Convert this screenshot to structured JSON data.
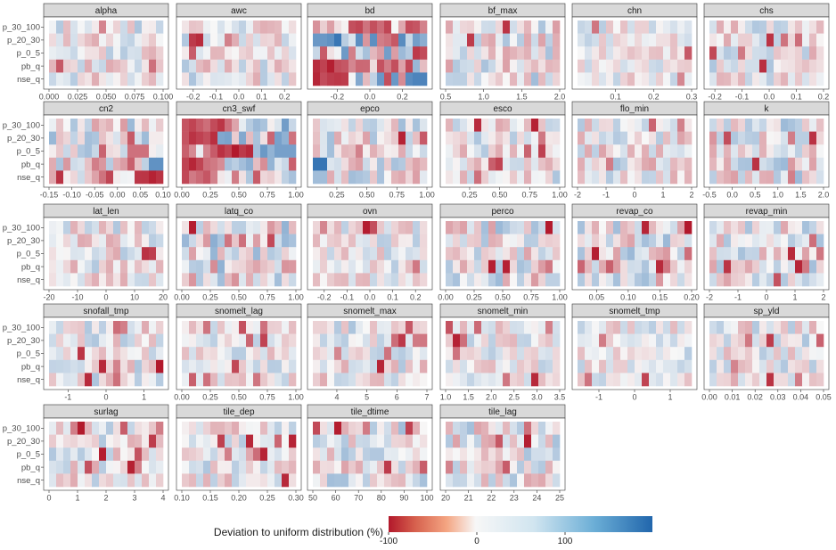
{
  "chart_data": {
    "type": "heatmap",
    "rows": [
      "p_30_100",
      "p_20_30",
      "p_0_5",
      "pb_q",
      "nse_q"
    ],
    "legend": {
      "title": "Deviation to uniform distribution (%)",
      "ticks": [
        "-100",
        "0",
        "100"
      ],
      "range": [
        -100,
        200
      ],
      "colors": [
        "#b2182b",
        "#f7f7f7",
        "#2166ac"
      ]
    },
    "panels": [
      {
        "name": "alpha",
        "xlim": [
          0,
          0.1
        ],
        "ticks": [
          "0.000",
          "0.025",
          "0.050",
          "0.075",
          "0.100"
        ],
        "tick_values": [
          0,
          0.025,
          0.05,
          0.075,
          0.1
        ],
        "intensity": 0.35,
        "seed": 1
      },
      {
        "name": "awc",
        "xlim": [
          -0.25,
          0.25
        ],
        "ticks": [
          "-0.2",
          "-0.1",
          "0.0",
          "0.1",
          "0.2"
        ],
        "tick_values": [
          -0.2,
          -0.1,
          0,
          0.1,
          0.2
        ],
        "intensity": 0.35,
        "seed": 2
      },
      {
        "name": "bd",
        "xlim": [
          -0.35,
          0.35
        ],
        "ticks": [
          "-0.2",
          "0.0",
          "0.2"
        ],
        "tick_values": [
          -0.2,
          0,
          0.2
        ],
        "intensity": 0.8,
        "seed": 3,
        "pattern": "bd"
      },
      {
        "name": "bf_max",
        "xlim": [
          0.5,
          2
        ],
        "ticks": [
          "0.5",
          "1.0",
          "1.5",
          "2.0"
        ],
        "tick_values": [
          0.5,
          1,
          1.5,
          2
        ],
        "intensity": 0.4,
        "seed": 4
      },
      {
        "name": "chn",
        "xlim": [
          0,
          0.3
        ],
        "ticks": [
          "0.1",
          "0.2",
          "0.3"
        ],
        "tick_values": [
          0.1,
          0.2,
          0.3
        ],
        "intensity": 0.3,
        "seed": 5
      },
      {
        "name": "chs",
        "xlim": [
          -0.22,
          0.2
        ],
        "ticks": [
          "-0.2",
          "-0.1",
          "0.0",
          "0.1",
          "0.2"
        ],
        "tick_values": [
          -0.2,
          -0.1,
          0,
          0.1,
          0.2
        ],
        "intensity": 0.35,
        "seed": 6
      },
      {
        "name": "cn2",
        "xlim": [
          -0.15,
          0.1
        ],
        "ticks": [
          "-0.15",
          "-0.10",
          "-0.05",
          "0.00",
          "0.05",
          "0.10"
        ],
        "tick_values": [
          -0.15,
          -0.1,
          -0.05,
          0,
          0.05,
          0.1
        ],
        "intensity": 0.45,
        "seed": 7,
        "pattern": "cn2"
      },
      {
        "name": "cn3_swf",
        "xlim": [
          0,
          1
        ],
        "ticks": [
          "0.00",
          "0.25",
          "0.50",
          "0.75",
          "1.00"
        ],
        "tick_values": [
          0,
          0.25,
          0.5,
          0.75,
          1
        ],
        "intensity": 0.7,
        "seed": 8,
        "pattern": "cn3"
      },
      {
        "name": "epco",
        "xlim": [
          0.05,
          1
        ],
        "ticks": [
          "0.25",
          "0.50",
          "0.75",
          "1.00"
        ],
        "tick_values": [
          0.25,
          0.5,
          0.75,
          1
        ],
        "intensity": 0.4,
        "seed": 9,
        "pattern": "epco"
      },
      {
        "name": "esco",
        "xlim": [
          0.05,
          1
        ],
        "ticks": [
          "0.25",
          "0.50",
          "0.75",
          "1.00"
        ],
        "tick_values": [
          0.25,
          0.5,
          0.75,
          1
        ],
        "intensity": 0.35,
        "seed": 10
      },
      {
        "name": "flo_min",
        "xlim": [
          -2,
          2
        ],
        "ticks": [
          "-2",
          "-1",
          "0",
          "1",
          "2"
        ],
        "tick_values": [
          -2,
          -1,
          0,
          1,
          2
        ],
        "intensity": 0.4,
        "seed": 11
      },
      {
        "name": "k",
        "xlim": [
          -0.5,
          2
        ],
        "ticks": [
          "-0.5",
          "0.0",
          "0.5",
          "1.0",
          "1.5",
          "2.0"
        ],
        "tick_values": [
          -0.5,
          0,
          0.5,
          1,
          1.5,
          2
        ],
        "intensity": 0.45,
        "seed": 12
      },
      {
        "name": "lat_len",
        "xlim": [
          -20,
          20
        ],
        "ticks": [
          "-20",
          "-10",
          "0",
          "10",
          "20"
        ],
        "tick_values": [
          -20,
          -10,
          0,
          10,
          20
        ],
        "intensity": 0.35,
        "seed": 13
      },
      {
        "name": "latq_co",
        "xlim": [
          0,
          1
        ],
        "ticks": [
          "0.00",
          "0.25",
          "0.50",
          "0.75",
          "1.00"
        ],
        "tick_values": [
          0,
          0.25,
          0.5,
          0.75,
          1
        ],
        "intensity": 0.5,
        "seed": 14
      },
      {
        "name": "ovn",
        "xlim": [
          -0.25,
          0.25
        ],
        "ticks": [
          "-0.2",
          "-0.1",
          "0.0",
          "0.1",
          "0.2"
        ],
        "tick_values": [
          -0.2,
          -0.1,
          0,
          0.1,
          0.2
        ],
        "intensity": 0.3,
        "seed": 15
      },
      {
        "name": "perco",
        "xlim": [
          0,
          1
        ],
        "ticks": [
          "0.00",
          "0.25",
          "0.50",
          "0.75",
          "1.00"
        ],
        "tick_values": [
          0,
          0.25,
          0.5,
          0.75,
          1
        ],
        "intensity": 0.45,
        "seed": 16
      },
      {
        "name": "revap_co",
        "xlim": [
          0.02,
          0.2
        ],
        "ticks": [
          "0.05",
          "0.10",
          "0.15",
          "0.20"
        ],
        "tick_values": [
          0.05,
          0.1,
          0.15,
          0.2
        ],
        "intensity": 0.45,
        "seed": 17
      },
      {
        "name": "revap_min",
        "xlim": [
          -2,
          2
        ],
        "ticks": [
          "-2",
          "-1",
          "0",
          "1",
          "2"
        ],
        "tick_values": [
          -2,
          -1,
          0,
          1,
          2
        ],
        "intensity": 0.4,
        "seed": 18
      },
      {
        "name": "snofall_tmp",
        "xlim": [
          -1.5,
          1.5
        ],
        "ticks": [
          "-1",
          "0",
          "1"
        ],
        "tick_values": [
          -1,
          0,
          1
        ],
        "intensity": 0.35,
        "seed": 19
      },
      {
        "name": "snomelt_lag",
        "xlim": [
          0,
          1
        ],
        "ticks": [
          "0.00",
          "0.25",
          "0.50",
          "0.75",
          "1.00"
        ],
        "tick_values": [
          0,
          0.25,
          0.5,
          0.75,
          1
        ],
        "intensity": 0.3,
        "seed": 20
      },
      {
        "name": "snomelt_max",
        "xlim": [
          3.2,
          7
        ],
        "ticks": [
          "4",
          "5",
          "6",
          "7"
        ],
        "tick_values": [
          4,
          5,
          6,
          7
        ],
        "intensity": 0.35,
        "seed": 21
      },
      {
        "name": "snomelt_min",
        "xlim": [
          1,
          3.5
        ],
        "ticks": [
          "1.0",
          "1.5",
          "2.0",
          "2.5",
          "3.0",
          "3.5"
        ],
        "tick_values": [
          1,
          1.5,
          2,
          2.5,
          3,
          3.5
        ],
        "intensity": 0.3,
        "seed": 22
      },
      {
        "name": "snomelt_tmp",
        "xlim": [
          -1.6,
          1.6
        ],
        "ticks": [
          "-1",
          "0",
          "1"
        ],
        "tick_values": [
          -1,
          0,
          1
        ],
        "intensity": 0.3,
        "seed": 23
      },
      {
        "name": "sp_yld",
        "xlim": [
          0,
          0.05
        ],
        "ticks": [
          "0.00",
          "0.01",
          "0.02",
          "0.03",
          "0.04",
          "0.05"
        ],
        "tick_values": [
          0,
          0.01,
          0.02,
          0.03,
          0.04,
          0.05
        ],
        "intensity": 0.35,
        "seed": 24
      },
      {
        "name": "surlag",
        "xlim": [
          0,
          4
        ],
        "ticks": [
          "0",
          "1",
          "2",
          "3",
          "4"
        ],
        "tick_values": [
          0,
          1,
          2,
          3,
          4
        ],
        "intensity": 0.35,
        "seed": 25
      },
      {
        "name": "tile_dep",
        "xlim": [
          0.1,
          0.3
        ],
        "ticks": [
          "0.10",
          "0.15",
          "0.20",
          "0.25",
          "0.30"
        ],
        "tick_values": [
          0.1,
          0.15,
          0.2,
          0.25,
          0.3
        ],
        "intensity": 0.35,
        "seed": 26
      },
      {
        "name": "tile_dtime",
        "xlim": [
          50,
          100
        ],
        "ticks": [
          "50",
          "60",
          "70",
          "80",
          "90",
          "100"
        ],
        "tick_values": [
          50,
          60,
          70,
          80,
          90,
          100
        ],
        "intensity": 0.4,
        "seed": 27
      },
      {
        "name": "tile_lag",
        "xlim": [
          20,
          25
        ],
        "ticks": [
          "20",
          "21",
          "22",
          "23",
          "24",
          "25"
        ],
        "tick_values": [
          20,
          21,
          22,
          23,
          24,
          25
        ],
        "intensity": 0.4,
        "seed": 28
      }
    ]
  }
}
